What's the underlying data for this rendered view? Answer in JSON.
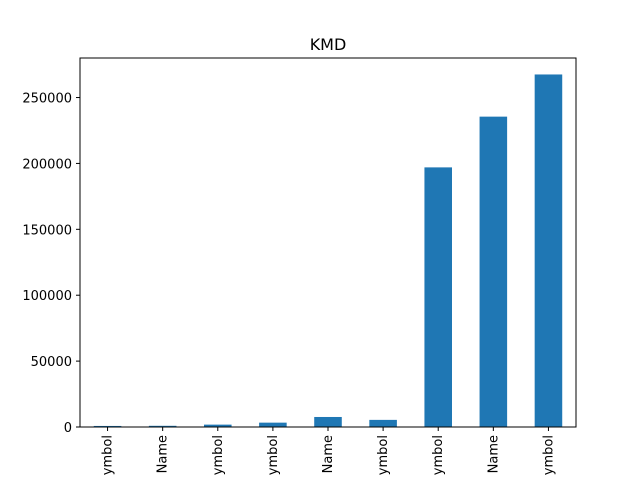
{
  "chart_data": {
    "type": "bar",
    "title": "KMD",
    "xlabel": "",
    "ylabel": "",
    "categories": [
      "ymbol",
      "Name",
      "ymbol",
      "ymbol",
      "Name",
      "ymbol",
      "ymbol",
      "Name",
      "ymbol"
    ],
    "values": [
      800,
      900,
      1800,
      3300,
      7600,
      5400,
      197000,
      235500,
      267500
    ],
    "yticks": [
      0,
      50000,
      100000,
      150000,
      200000,
      250000
    ],
    "ylim": [
      0,
      280000
    ],
    "grid": false,
    "legend": "none",
    "bar_color": "#1f77b4"
  }
}
